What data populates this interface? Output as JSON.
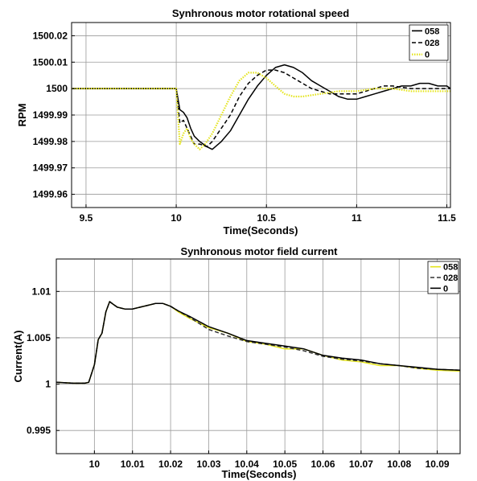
{
  "chart_data": [
    {
      "type": "line",
      "title": "Synhronous motor rotational speed",
      "xlabel": "Time(Seconds)",
      "ylabel": "RPM",
      "xlim": [
        9.42,
        11.52
      ],
      "ylim": [
        1499.955,
        1500.025
      ],
      "xticks": [
        9.5,
        10,
        10.5,
        11,
        11.5
      ],
      "xtick_labels": [
        "9.5",
        "10",
        "10.5",
        "11",
        "11.5"
      ],
      "yticks": [
        1499.96,
        1499.97,
        1499.98,
        1499.99,
        1500,
        1500.01,
        1500.02
      ],
      "ytick_labels": [
        "1499.96",
        "1499.97",
        "1499.98",
        "1499.99",
        "1500",
        "1500.01",
        "1500.02"
      ],
      "grid": true,
      "legend_position": "top-right",
      "series": [
        {
          "name": "058",
          "color": "#000000",
          "dash": "solid",
          "x": [
            9.42,
            10.0,
            10.02,
            10.04,
            10.06,
            10.08,
            10.1,
            10.13,
            10.17,
            10.2,
            10.25,
            10.3,
            10.35,
            10.4,
            10.45,
            10.5,
            10.55,
            10.6,
            10.65,
            10.7,
            10.75,
            10.8,
            10.85,
            10.9,
            10.95,
            11.0,
            11.05,
            11.1,
            11.15,
            11.2,
            11.25,
            11.3,
            11.35,
            11.4,
            11.45,
            11.5,
            11.52
          ],
          "y": [
            1500.0,
            1500.0,
            1499.992,
            1499.991,
            1499.989,
            1499.985,
            1499.982,
            1499.98,
            1499.978,
            1499.977,
            1499.98,
            1499.984,
            1499.99,
            1499.996,
            1500.001,
            1500.005,
            1500.008,
            1500.009,
            1500.008,
            1500.006,
            1500.003,
            1500.001,
            1499.999,
            1499.997,
            1499.996,
            1499.996,
            1499.997,
            1499.998,
            1499.999,
            1500.0,
            1500.001,
            1500.001,
            1500.002,
            1500.002,
            1500.001,
            1500.001,
            1500.0
          ]
        },
        {
          "name": "028",
          "color": "#000000",
          "dash": "dashed",
          "x": [
            9.42,
            10.0,
            10.02,
            10.04,
            10.06,
            10.08,
            10.1,
            10.13,
            10.17,
            10.2,
            10.25,
            10.3,
            10.35,
            10.4,
            10.45,
            10.5,
            10.55,
            10.6,
            10.65,
            10.7,
            10.75,
            10.8,
            10.85,
            10.9,
            10.95,
            11.0,
            11.05,
            11.1,
            11.15,
            11.2,
            11.3,
            11.4,
            11.52
          ],
          "y": [
            1500.0,
            1500.0,
            1499.987,
            1499.988,
            1499.985,
            1499.982,
            1499.979,
            1499.979,
            1499.978,
            1499.98,
            1499.985,
            1499.99,
            1499.997,
            1500.002,
            1500.005,
            1500.007,
            1500.007,
            1500.006,
            1500.004,
            1500.002,
            1500.0,
            1499.999,
            1499.998,
            1499.998,
            1499.998,
            1499.998,
            1499.999,
            1500.0,
            1500.001,
            1500.001,
            1500.0,
            1500.0,
            1500.0
          ]
        },
        {
          "name": "0",
          "color": "#e4e41a",
          "dash": "dotted",
          "x": [
            9.42,
            10.0,
            10.02,
            10.04,
            10.06,
            10.08,
            10.1,
            10.13,
            10.16,
            10.2,
            10.25,
            10.3,
            10.35,
            10.4,
            10.45,
            10.5,
            10.55,
            10.6,
            10.65,
            10.7,
            10.8,
            10.9,
            11.0,
            11.1,
            11.2,
            11.3,
            11.4,
            11.52
          ],
          "y": [
            1500.0,
            1500.0,
            1499.979,
            1499.983,
            1499.985,
            1499.981,
            1499.979,
            1499.977,
            1499.979,
            1499.983,
            1499.99,
            1499.997,
            1500.003,
            1500.006,
            1500.006,
            1500.004,
            1500.001,
            1499.998,
            1499.997,
            1499.997,
            1499.998,
            1499.999,
            1499.999,
            1500.0,
            1500.0,
            1499.999,
            1499.999,
            1499.999
          ]
        }
      ]
    },
    {
      "type": "line",
      "title": "Synhronous motor field current",
      "xlabel": "Time(Seconds)",
      "ylabel": "Current(A)",
      "xlim": [
        9.99,
        10.096
      ],
      "ylim": [
        0.9925,
        1.0135
      ],
      "xticks": [
        10.0,
        10.01,
        10.02,
        10.03,
        10.04,
        10.05,
        10.06,
        10.07,
        10.08,
        10.09
      ],
      "xtick_labels": [
        "10",
        "10.01",
        "10.02",
        "10.03",
        "10.04",
        "10.05",
        "10.06",
        "10.07",
        "10.08",
        "10.09"
      ],
      "yticks": [
        0.995,
        1.0,
        1.005,
        1.01
      ],
      "ytick_labels": [
        "0.995",
        "1",
        "1.005",
        "1.01"
      ],
      "grid": true,
      "legend_position": "top-right",
      "series": [
        {
          "name": "058",
          "color": "#e4e41a",
          "dash": "solid",
          "x": [
            9.99,
            9.9945,
            9.996,
            9.9975,
            9.9985,
            10.0,
            10.001,
            10.002,
            10.003,
            10.004,
            10.005,
            10.006,
            10.008,
            10.01,
            10.012,
            10.014,
            10.016,
            10.018,
            10.02,
            10.022,
            10.025,
            10.03,
            10.035,
            10.04,
            10.045,
            10.05,
            10.055,
            10.06,
            10.065,
            10.07,
            10.075,
            10.08,
            10.085,
            10.09,
            10.096
          ],
          "y": [
            1.0002,
            1.0001,
            1.0001,
            1.0001,
            1.0002,
            1.0021,
            1.0048,
            1.0055,
            1.0078,
            1.0089,
            1.0086,
            1.0083,
            1.0081,
            1.0081,
            1.0083,
            1.0085,
            1.0087,
            1.0087,
            1.0084,
            1.0078,
            1.0071,
            1.0061,
            1.0055,
            1.0046,
            1.0043,
            1.0038,
            1.0038,
            1.0031,
            1.0026,
            1.0024,
            1.002,
            1.002,
            1.0017,
            1.0015,
            1.0014
          ]
        },
        {
          "name": "028",
          "color": "#333333",
          "dash": "dashed",
          "x": [
            9.99,
            9.9945,
            9.996,
            9.9975,
            9.9985,
            10.0,
            10.001,
            10.002,
            10.003,
            10.004,
            10.005,
            10.006,
            10.008,
            10.01,
            10.012,
            10.014,
            10.016,
            10.018,
            10.02,
            10.022,
            10.025,
            10.03,
            10.035,
            10.04,
            10.045,
            10.05,
            10.055,
            10.06,
            10.065,
            10.07,
            10.075,
            10.08,
            10.085,
            10.09,
            10.096
          ],
          "y": [
            1.0002,
            1.0001,
            1.0001,
            1.0001,
            1.0002,
            1.0021,
            1.0048,
            1.0055,
            1.0078,
            1.0089,
            1.0086,
            1.0083,
            1.0081,
            1.0081,
            1.0083,
            1.0085,
            1.0087,
            1.0087,
            1.0084,
            1.0079,
            1.0072,
            1.0059,
            1.0052,
            1.0046,
            1.0043,
            1.004,
            1.0036,
            1.003,
            1.0027,
            1.0025,
            1.0022,
            1.002,
            1.0017,
            1.0016,
            1.0015
          ]
        },
        {
          "name": "0",
          "color": "#000000",
          "dash": "solid",
          "x": [
            9.99,
            9.9945,
            9.996,
            9.9975,
            9.9985,
            10.0,
            10.001,
            10.002,
            10.003,
            10.004,
            10.005,
            10.006,
            10.008,
            10.01,
            10.012,
            10.014,
            10.016,
            10.018,
            10.02,
            10.022,
            10.025,
            10.03,
            10.035,
            10.04,
            10.045,
            10.05,
            10.055,
            10.06,
            10.065,
            10.07,
            10.075,
            10.08,
            10.085,
            10.09,
            10.096
          ],
          "y": [
            1.0002,
            1.0001,
            1.0001,
            1.0001,
            1.0002,
            1.0021,
            1.0048,
            1.0055,
            1.0078,
            1.0089,
            1.0086,
            1.0083,
            1.0081,
            1.0081,
            1.0083,
            1.0085,
            1.0087,
            1.0087,
            1.0084,
            1.0079,
            1.0073,
            1.0062,
            1.0055,
            1.0047,
            1.0044,
            1.0041,
            1.0038,
            1.0031,
            1.0028,
            1.0026,
            1.0022,
            1.002,
            1.0018,
            1.0016,
            1.0015
          ]
        }
      ]
    }
  ]
}
